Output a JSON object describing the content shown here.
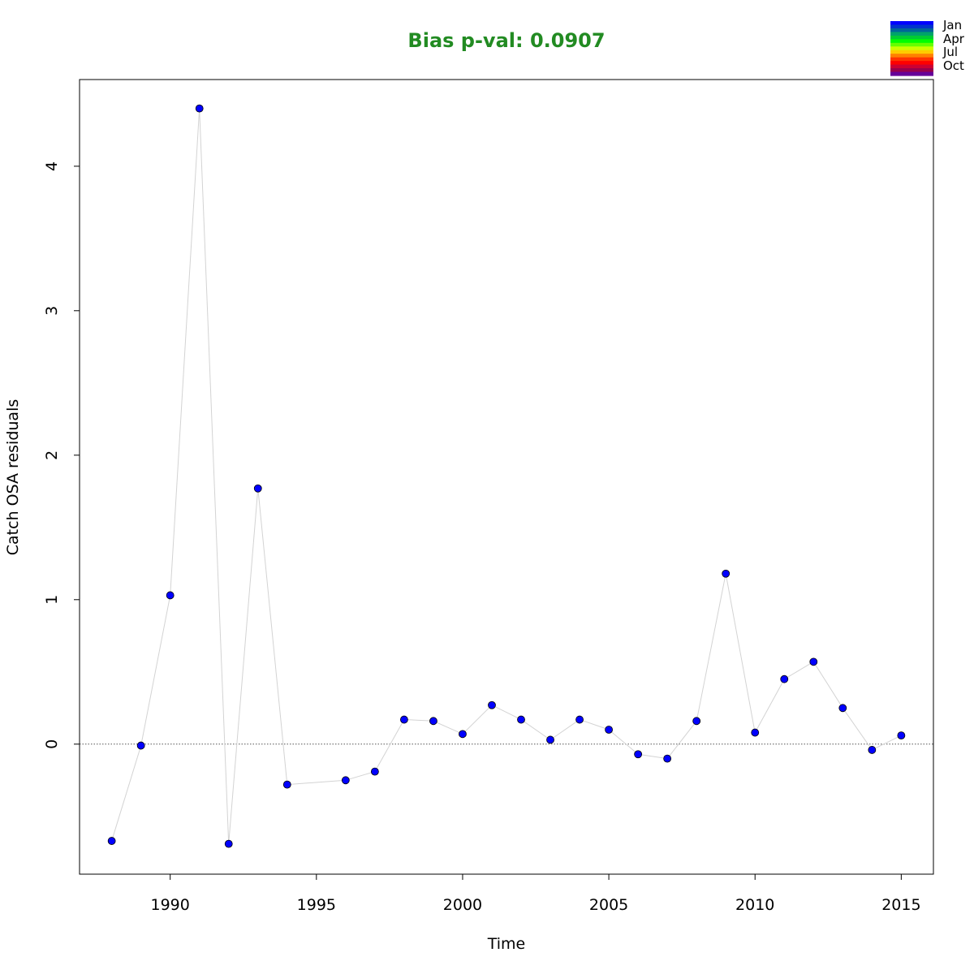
{
  "chart_data": {
    "type": "scatter",
    "title": "Bias p-val: 0.0907",
    "title_color": "#228B22",
    "xlabel": "Time",
    "ylabel": "Catch OSA residuals",
    "xlim": [
      1986.9,
      2016.1
    ],
    "ylim": [
      -0.9,
      4.6
    ],
    "x_ticks": [
      1990,
      1995,
      2000,
      2005,
      2010,
      2015
    ],
    "y_ticks": [
      0,
      1,
      2,
      3,
      4
    ],
    "reference_line": 0,
    "grid": false,
    "point_color": "#0000FF",
    "line_color": "#D3D3D3",
    "series": [
      {
        "x": [
          1988,
          1989,
          1990,
          1991,
          1992,
          1993,
          1994,
          1996,
          1997,
          1998,
          1999,
          2000,
          2001,
          2002,
          2003,
          2004,
          2005,
          2006,
          2007,
          2008,
          2009,
          2010,
          2011,
          2012,
          2013,
          2014,
          2015
        ],
        "y": [
          -0.67,
          -0.01,
          1.03,
          4.4,
          -0.69,
          1.77,
          -0.28,
          -0.25,
          -0.19,
          0.17,
          0.16,
          0.07,
          0.27,
          0.17,
          0.03,
          0.17,
          0.1,
          -0.07,
          -0.1,
          0.16,
          1.18,
          0.08,
          0.45,
          0.57,
          0.25,
          -0.04,
          0.06
        ]
      }
    ],
    "legend": {
      "position": "top-right",
      "labels": [
        "Jan",
        "Apr",
        "Jul",
        "Oct"
      ],
      "colors": [
        "#0000FF",
        "#0033CC",
        "#006699",
        "#00A36B",
        "#00CC33",
        "#00FF00",
        "#66FF00",
        "#CCFF00",
        "#FFCC00",
        "#FF8000",
        "#FF3300",
        "#FF0000",
        "#CC0033",
        "#99004D",
        "#660099"
      ]
    }
  }
}
